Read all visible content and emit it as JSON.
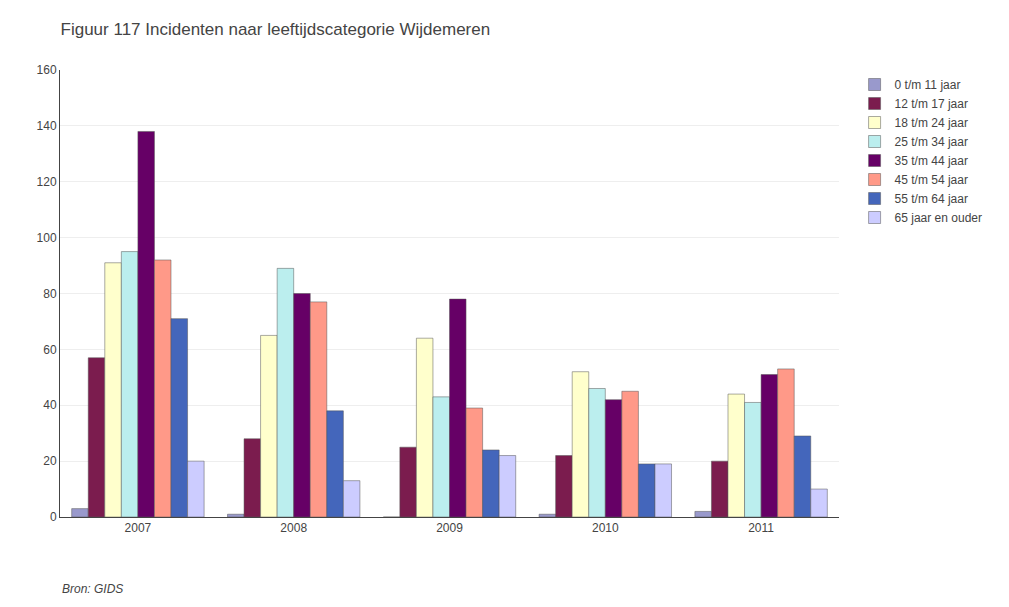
{
  "chart_data": {
    "type": "bar",
    "title": "Figuur 117 Incidenten naar leeftijdscategorie Wijdemeren",
    "categories": [
      "2007",
      "2008",
      "2009",
      "2010",
      "2011"
    ],
    "series": [
      {
        "name": "0 t/m 11 jaar",
        "color": "#9999cc",
        "values": [
          3,
          1,
          0,
          1,
          2
        ]
      },
      {
        "name": "12 t/m 17 jaar",
        "color": "#7b1c4e",
        "values": [
          57,
          28,
          25,
          22,
          20
        ]
      },
      {
        "name": "18 t/m 24 jaar",
        "color": "#ffffcc",
        "values": [
          91,
          65,
          64,
          52,
          44
        ]
      },
      {
        "name": "25 t/m 34 jaar",
        "color": "#bbeeee",
        "values": [
          95,
          89,
          43,
          46,
          41
        ]
      },
      {
        "name": "35 t/m 44 jaar",
        "color": "#660066",
        "values": [
          138,
          80,
          78,
          42,
          51
        ]
      },
      {
        "name": "45 t/m 54 jaar",
        "color": "#ff9988",
        "values": [
          92,
          77,
          39,
          45,
          53
        ]
      },
      {
        "name": "55 t/m 64 jaar",
        "color": "#4466bb",
        "values": [
          71,
          38,
          24,
          19,
          29
        ]
      },
      {
        "name": "65 jaar en ouder",
        "color": "#ccccff",
        "values": [
          20,
          13,
          22,
          19,
          10
        ]
      }
    ],
    "ylim": [
      0,
      160
    ],
    "yticks": [
      0,
      20,
      40,
      60,
      80,
      100,
      120,
      140,
      160
    ],
    "grid": true,
    "legend": "right",
    "annotations": [
      "Bron: GIDS"
    ]
  }
}
